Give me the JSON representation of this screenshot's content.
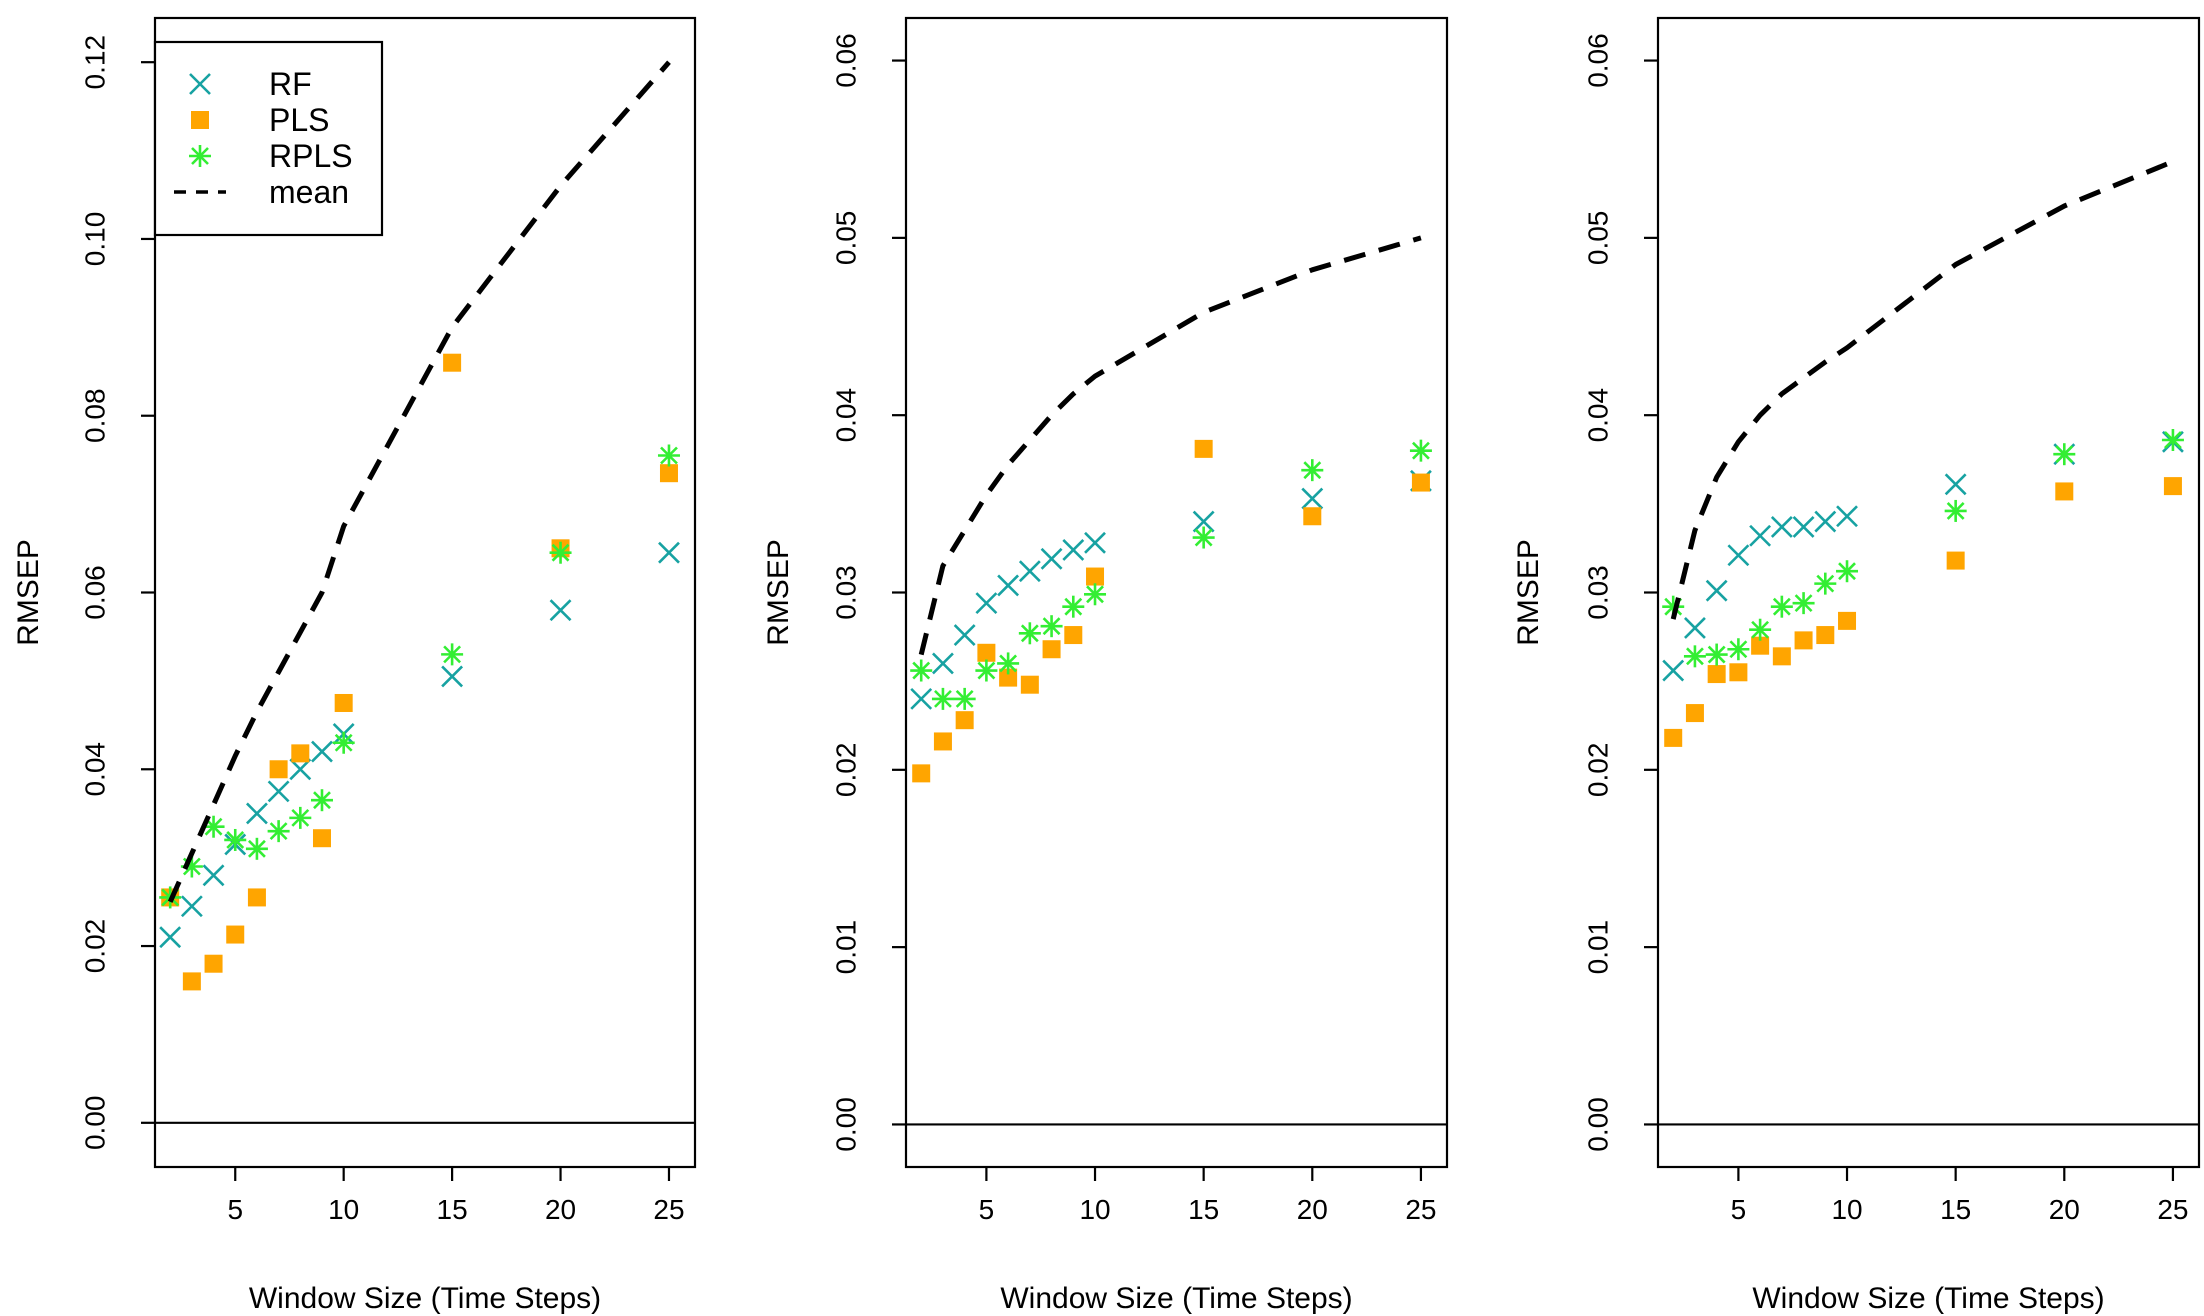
{
  "figure": {
    "ylabel": "RMSEP",
    "xlabel": "Window Size (Time Steps)"
  },
  "legend": {
    "placement": "top-left",
    "entries": [
      {
        "name": "RF",
        "marker": "x",
        "color": "#17A2A2"
      },
      {
        "name": "PLS",
        "marker": "square",
        "color": "#FFA500"
      },
      {
        "name": "RPLS",
        "marker": "asterisk",
        "color": "#33EE33"
      },
      {
        "name": "mean",
        "marker": "dashed-line",
        "color": "#000000"
      }
    ]
  },
  "colors": {
    "RF": "#17A2A2",
    "PLS": "#FFA500",
    "RPLS": "#33EE33",
    "mean": "#000000"
  },
  "chart_data": [
    {
      "type": "scatter",
      "title": "",
      "xlabel": "Window Size (Time Steps)",
      "ylabel": "RMSEP",
      "xlim": [
        1.3,
        26.2
      ],
      "ylim": [
        -0.005,
        0.125
      ],
      "xticks": [
        "5",
        "10",
        "15",
        "20",
        "25"
      ],
      "yticks": [
        "0.00",
        "0.02",
        "0.04",
        "0.06",
        "0.08",
        "0.10",
        "0.12"
      ],
      "hline": 0,
      "x": [
        2,
        3,
        4,
        5,
        6,
        7,
        8,
        9,
        10,
        15,
        20,
        25
      ],
      "series": [
        {
          "name": "RF",
          "values": [
            0.021,
            0.0245,
            0.028,
            0.0315,
            0.035,
            0.0375,
            0.04,
            0.042,
            0.044,
            0.0505,
            0.058,
            0.0645
          ]
        },
        {
          "name": "PLS",
          "values": [
            0.0255,
            0.016,
            0.018,
            0.0213,
            0.0255,
            0.04,
            0.0418,
            0.0322,
            0.0475,
            0.086,
            0.065,
            0.0735
          ]
        },
        {
          "name": "RPLS",
          "values": [
            0.0255,
            0.029,
            0.0335,
            0.032,
            0.031,
            0.033,
            0.0345,
            0.0365,
            0.043,
            0.053,
            0.0645,
            0.0755
          ]
        },
        {
          "name": "mean",
          "values": [
            0.025,
            0.0305,
            0.036,
            0.0415,
            0.0465,
            0.051,
            0.0555,
            0.06,
            0.0675,
            0.09,
            0.106,
            0.12
          ]
        }
      ]
    },
    {
      "type": "scatter",
      "title": "",
      "xlabel": "Window Size (Time Steps)",
      "ylabel": "RMSEP",
      "xlim": [
        1.3,
        26.2
      ],
      "ylim": [
        -0.0024,
        0.0624
      ],
      "xticks": [
        "5",
        "10",
        "15",
        "20",
        "25"
      ],
      "yticks": [
        "0.00",
        "0.01",
        "0.02",
        "0.03",
        "0.04",
        "0.05",
        "0.06"
      ],
      "hline": 0,
      "x": [
        2,
        3,
        4,
        5,
        6,
        7,
        8,
        9,
        10,
        15,
        20,
        25
      ],
      "series": [
        {
          "name": "RF",
          "values": [
            0.024,
            0.026,
            0.0276,
            0.0294,
            0.0304,
            0.0312,
            0.0319,
            0.0324,
            0.0328,
            0.034,
            0.0353,
            0.0363
          ]
        },
        {
          "name": "PLS",
          "values": [
            0.0198,
            0.0216,
            0.0228,
            0.0266,
            0.0252,
            0.0248,
            0.0268,
            0.0276,
            0.0309,
            0.0381,
            0.0343,
            0.0362
          ]
        },
        {
          "name": "RPLS",
          "values": [
            0.0256,
            0.024,
            0.024,
            0.0256,
            0.026,
            0.0277,
            0.0281,
            0.0292,
            0.0299,
            0.0331,
            0.0369,
            0.038
          ]
        },
        {
          "name": "mean",
          "values": [
            0.0265,
            0.0315,
            0.0335,
            0.0355,
            0.0372,
            0.0386,
            0.04,
            0.0412,
            0.0422,
            0.0458,
            0.0482,
            0.05
          ]
        }
      ]
    },
    {
      "type": "scatter",
      "title": "",
      "xlabel": "Window Size (Time Steps)",
      "ylabel": "RMSEP",
      "xlim": [
        1.3,
        26.2
      ],
      "ylim": [
        -0.0024,
        0.0624
      ],
      "xticks": [
        "5",
        "10",
        "15",
        "20",
        "25"
      ],
      "yticks": [
        "0.00",
        "0.01",
        "0.02",
        "0.03",
        "0.04",
        "0.05",
        "0.06"
      ],
      "hline": 0,
      "x": [
        2,
        3,
        4,
        5,
        6,
        7,
        8,
        9,
        10,
        15,
        20,
        25
      ],
      "series": [
        {
          "name": "RF",
          "values": [
            0.0256,
            0.028,
            0.0301,
            0.0321,
            0.0332,
            0.0337,
            0.0337,
            0.034,
            0.0343,
            0.0361,
            0.0378,
            0.0385
          ]
        },
        {
          "name": "PLS",
          "values": [
            0.0218,
            0.0232,
            0.0254,
            0.0255,
            0.027,
            0.0264,
            0.0273,
            0.0276,
            0.0284,
            0.0318,
            0.0357,
            0.036
          ]
        },
        {
          "name": "RPLS",
          "values": [
            0.0292,
            0.0264,
            0.0265,
            0.0268,
            0.0279,
            0.0292,
            0.0294,
            0.0305,
            0.0312,
            0.0346,
            0.0378,
            0.0386
          ]
        },
        {
          "name": "mean",
          "values": [
            0.0285,
            0.0335,
            0.0365,
            0.0385,
            0.04,
            0.0412,
            0.0421,
            0.043,
            0.0438,
            0.0485,
            0.0518,
            0.0543
          ]
        }
      ]
    }
  ]
}
